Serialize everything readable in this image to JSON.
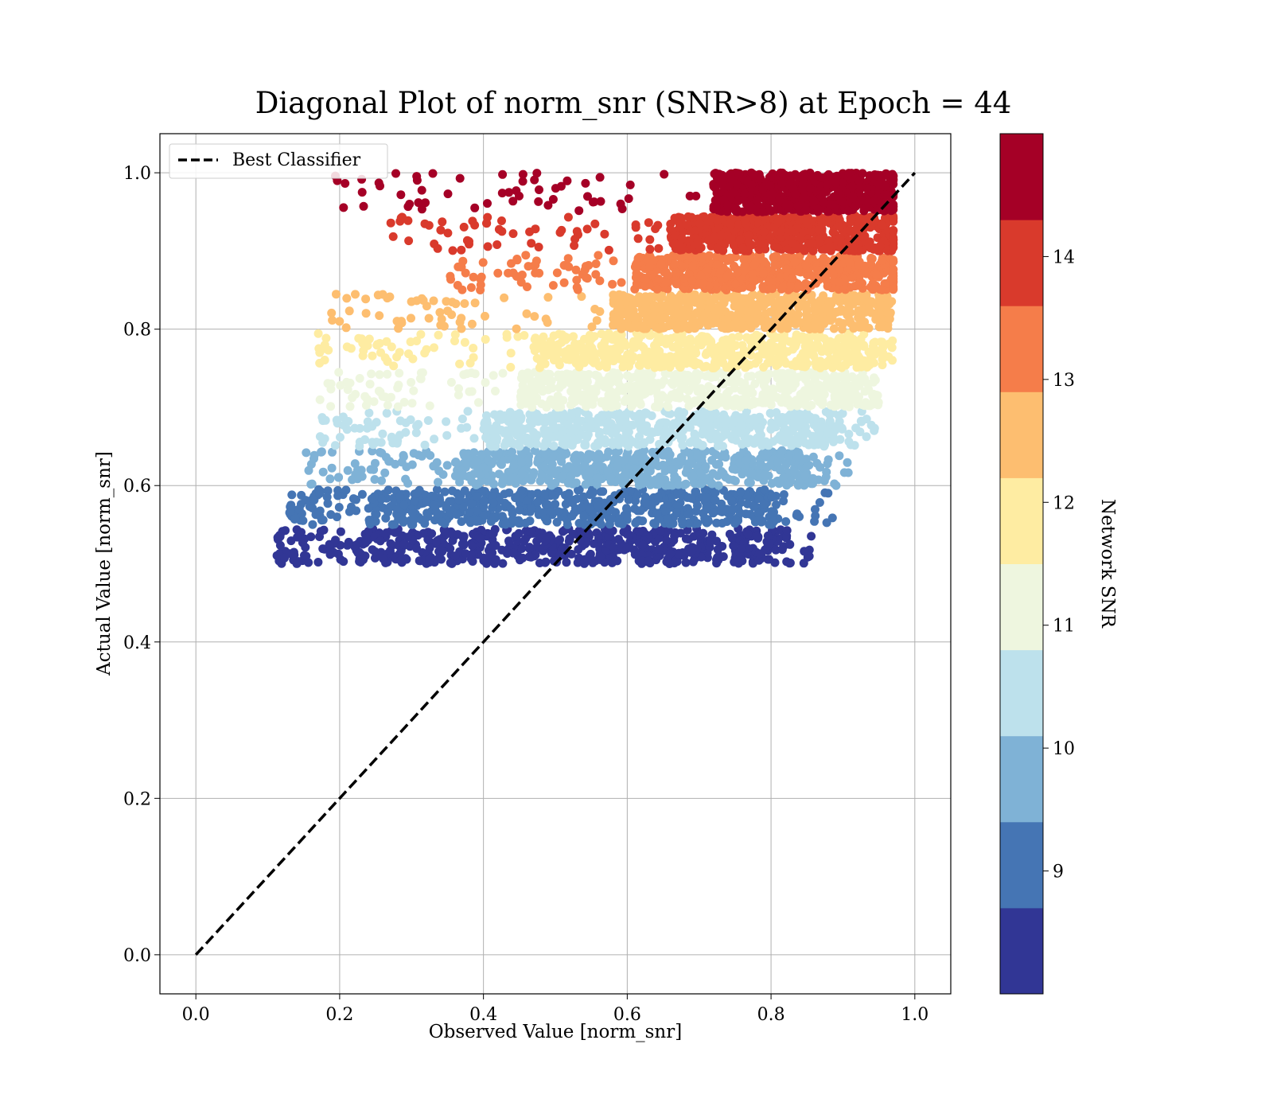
{
  "chart_data": {
    "type": "scatter",
    "title": "Diagonal Plot of norm_snr (SNR>8) at Epoch = 44",
    "xlabel": "Observed Value [norm_snr]",
    "ylabel": "Actual Value [norm_snr]",
    "xlim": [
      -0.05,
      1.05
    ],
    "ylim": [
      -0.05,
      1.05
    ],
    "x_ticks": [
      "0.0",
      "0.2",
      "0.4",
      "0.6",
      "0.8",
      "1.0"
    ],
    "y_ticks": [
      "0.0",
      "0.2",
      "0.4",
      "0.6",
      "0.8",
      "1.0"
    ],
    "grid": true,
    "legend": {
      "location": "upper-left",
      "entries": [
        {
          "label": "Best Classifier",
          "style": "dashed",
          "color": "#000000"
        }
      ]
    },
    "diagonal_line": {
      "label": "Best Classifier",
      "x": [
        0.0,
        1.0
      ],
      "y": [
        0.0,
        1.0
      ]
    },
    "colorbar": {
      "label": "Network SNR",
      "range": [
        8,
        15
      ],
      "ticks": [
        "9",
        "10",
        "11",
        "12",
        "13",
        "14"
      ],
      "bins": [
        {
          "snr": [
            8.0,
            8.7
          ],
          "color": "#313695"
        },
        {
          "snr": [
            8.7,
            9.4
          ],
          "color": "#4575b4"
        },
        {
          "snr": [
            9.4,
            10.1
          ],
          "color": "#7fb2d6"
        },
        {
          "snr": [
            10.1,
            10.8
          ],
          "color": "#bde1ec"
        },
        {
          "snr": [
            10.8,
            11.5
          ],
          "color": "#eef6df"
        },
        {
          "snr": [
            11.5,
            12.2
          ],
          "color": "#feeca2"
        },
        {
          "snr": [
            12.2,
            12.9
          ],
          "color": "#fdbe70"
        },
        {
          "snr": [
            12.9,
            13.6
          ],
          "color": "#f57d4a"
        },
        {
          "snr": [
            13.6,
            14.3
          ],
          "color": "#d93a2c"
        },
        {
          "snr": [
            14.3,
            15.0
          ],
          "color": "#a50026"
        }
      ]
    },
    "point_bands": [
      {
        "y": [
          0.5,
          0.545
        ],
        "dense_x": [
          0.22,
          0.82
        ],
        "sparse_x": [
          0.11,
          0.86
        ],
        "color": "#313695"
      },
      {
        "y": [
          0.55,
          0.595
        ],
        "dense_x": [
          0.24,
          0.81
        ],
        "sparse_x": [
          0.13,
          0.89
        ],
        "color": "#4575b4"
      },
      {
        "y": [
          0.6,
          0.645
        ],
        "dense_x": [
          0.36,
          0.86
        ],
        "sparse_x": [
          0.15,
          0.91
        ],
        "color": "#7fb2d6"
      },
      {
        "y": [
          0.65,
          0.695
        ],
        "dense_x": [
          0.4,
          0.9
        ],
        "sparse_x": [
          0.17,
          0.95
        ],
        "color": "#bde1ec"
      },
      {
        "y": [
          0.7,
          0.745
        ],
        "dense_x": [
          0.45,
          0.94
        ],
        "sparse_x": [
          0.17,
          0.95
        ],
        "color": "#eef6df"
      },
      {
        "y": [
          0.75,
          0.795
        ],
        "dense_x": [
          0.47,
          0.95
        ],
        "sparse_x": [
          0.17,
          0.97
        ],
        "color": "#feeca2"
      },
      {
        "y": [
          0.8,
          0.845
        ],
        "dense_x": [
          0.58,
          0.96
        ],
        "sparse_x": [
          0.18,
          0.97
        ],
        "color": "#fdbe70"
      },
      {
        "y": [
          0.85,
          0.895
        ],
        "dense_x": [
          0.61,
          0.97
        ],
        "sparse_x": [
          0.35,
          0.97
        ],
        "color": "#f57d4a"
      },
      {
        "y": [
          0.9,
          0.945
        ],
        "dense_x": [
          0.66,
          0.97
        ],
        "sparse_x": [
          0.26,
          0.97
        ],
        "color": "#d93a2c"
      },
      {
        "y": [
          0.95,
          1.0
        ],
        "dense_x": [
          0.72,
          0.97
        ],
        "sparse_x": [
          0.19,
          0.97
        ],
        "color": "#a50026"
      }
    ]
  }
}
